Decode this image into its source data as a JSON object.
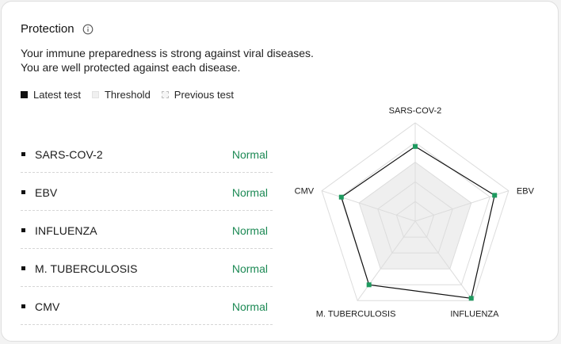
{
  "card": {
    "title": "Protection",
    "info_icon": "info-icon",
    "description_lines": [
      "Your immune preparedness is strong against viral diseases.",
      "You are well protected against each disease."
    ],
    "legend": [
      {
        "label": "Latest test"
      },
      {
        "label": "Threshold"
      },
      {
        "label": "Previous test"
      }
    ]
  },
  "diseases": [
    {
      "name": "SARS-COV-2",
      "status": "Normal"
    },
    {
      "name": "EBV",
      "status": "Normal"
    },
    {
      "name": "INFLUENZA",
      "status": "Normal"
    },
    {
      "name": "M. TUBERCULOSIS",
      "status": "Normal"
    },
    {
      "name": "CMV",
      "status": "Normal"
    }
  ],
  "colors": {
    "status_normal": "#1d8a55",
    "marker": "#1e9a5f",
    "latest_line": "#111111",
    "threshold_fill": "#efefef",
    "grid": "#dcdcdc"
  },
  "chart_data": {
    "type": "radar",
    "axes": [
      "SARS-COV-2",
      "EBV",
      "INFLUENZA",
      "M. TUBERCULOSIS",
      "CMV"
    ],
    "series": [
      {
        "name": "Latest test",
        "values": [
          0.76,
          0.85,
          0.97,
          0.8,
          0.79
        ]
      },
      {
        "name": "Threshold",
        "values": [
          0.6,
          0.6,
          0.6,
          0.6,
          0.6
        ]
      }
    ],
    "range": [
      0,
      1
    ],
    "grid_levels": 5
  }
}
